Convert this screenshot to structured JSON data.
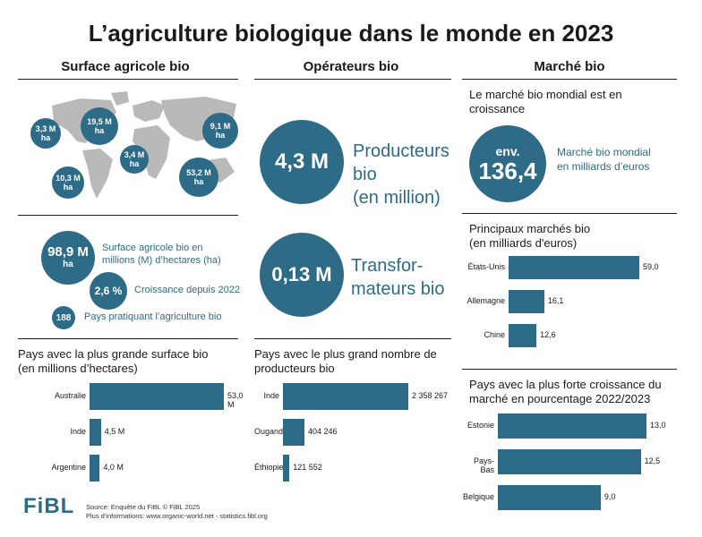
{
  "title": "L’agriculture biologique dans le monde en 2023",
  "columns": {
    "surface": "Surface agricole bio",
    "operateurs": "Opérateurs bio",
    "marche": "Marché bio"
  },
  "map_regions": [
    {
      "value": "3,3 M",
      "unit": "ha"
    },
    {
      "value": "19,5 M",
      "unit": "ha"
    },
    {
      "value": "9,1 M",
      "unit": "ha"
    },
    {
      "value": "3,4 M",
      "unit": "ha"
    },
    {
      "value": "10,3 M",
      "unit": "ha"
    },
    {
      "value": "53,2 M",
      "unit": "ha"
    }
  ],
  "surface_stats": {
    "total_value": "98,9 M",
    "total_unit": "ha",
    "total_label": "Surface agricole bio en millions (M) d’hectares (ha)",
    "growth_value": "2,6 %",
    "growth_label": "Croissance depuis 2022",
    "countries_value": "188",
    "countries_label": "Pays pratiquant l’agriculture bio"
  },
  "operators": {
    "producers_value": "4,3 M",
    "producers_label_1": "Producteurs",
    "producers_label_2": "bio",
    "producers_label_3": "(en million)",
    "processors_value": "0,13 M",
    "processors_label_1": "Transfor-",
    "processors_label_2": "mateurs bio"
  },
  "market": {
    "intro": "Le marché bio mondial est en croissance",
    "env": "env.",
    "value": "136,4",
    "label_1": "Marché bio mondial",
    "label_2": "en milliards d’euros"
  },
  "section_titles": {
    "surface_chart_1": "Pays avec la plus grande surface bio",
    "surface_chart_2": "(en millions d’hectares)",
    "producers_chart_1": "Pays avec le plus grand nombre de",
    "producers_chart_2": "producteurs bio",
    "markets_chart_1": "Principaux marchés bio",
    "markets_chart_2": "(en milliards d'euros)",
    "growth_chart_1": "Pays avec la plus forte croissance du",
    "growth_chart_2": "marché en pourcentage 2022/2023"
  },
  "chart_data": [
    {
      "type": "bar",
      "orientation": "horizontal",
      "title": "Pays avec la plus grande surface bio (en millions d’hectares)",
      "categories": [
        "Australie",
        "Inde",
        "Argentine"
      ],
      "values": [
        53.0,
        4.5,
        4.0
      ],
      "value_labels": [
        "53,0 M",
        "4,5 M",
        "4,0 M"
      ]
    },
    {
      "type": "bar",
      "orientation": "horizontal",
      "title": "Pays avec le plus grand nombre de producteurs bio",
      "categories": [
        "Inde",
        "Ouganda",
        "Éthiopie"
      ],
      "values": [
        2358267,
        404246,
        121552
      ],
      "value_labels": [
        "2 358 267",
        "404 246",
        "121 552"
      ]
    },
    {
      "type": "bar",
      "orientation": "horizontal",
      "title": "Principaux marchés bio (en milliards d'euros)",
      "categories": [
        "États-Unis",
        "Allemagne",
        "Chine"
      ],
      "values": [
        59.0,
        16.1,
        12.6
      ],
      "value_labels": [
        "59,0",
        "16,1",
        "12,6"
      ]
    },
    {
      "type": "bar",
      "orientation": "horizontal",
      "title": "Pays avec la plus forte croissance du marché en pourcentage 2022/2023",
      "categories": [
        "Estonie",
        "Pays-Bas",
        "Belgique"
      ],
      "values": [
        13.0,
        12.5,
        9.0
      ],
      "value_labels": [
        "13,0",
        "12,5",
        "9,0"
      ]
    }
  ],
  "footer": {
    "logo": "FiBL",
    "line1": "Source: Enquête du FiBL © FiBL 2025",
    "line2": "Plus d'informations: www.organic-world.net - statistics.fibl.org"
  },
  "colors": {
    "accent": "#2e6b86",
    "map": "#b9b9b9"
  }
}
